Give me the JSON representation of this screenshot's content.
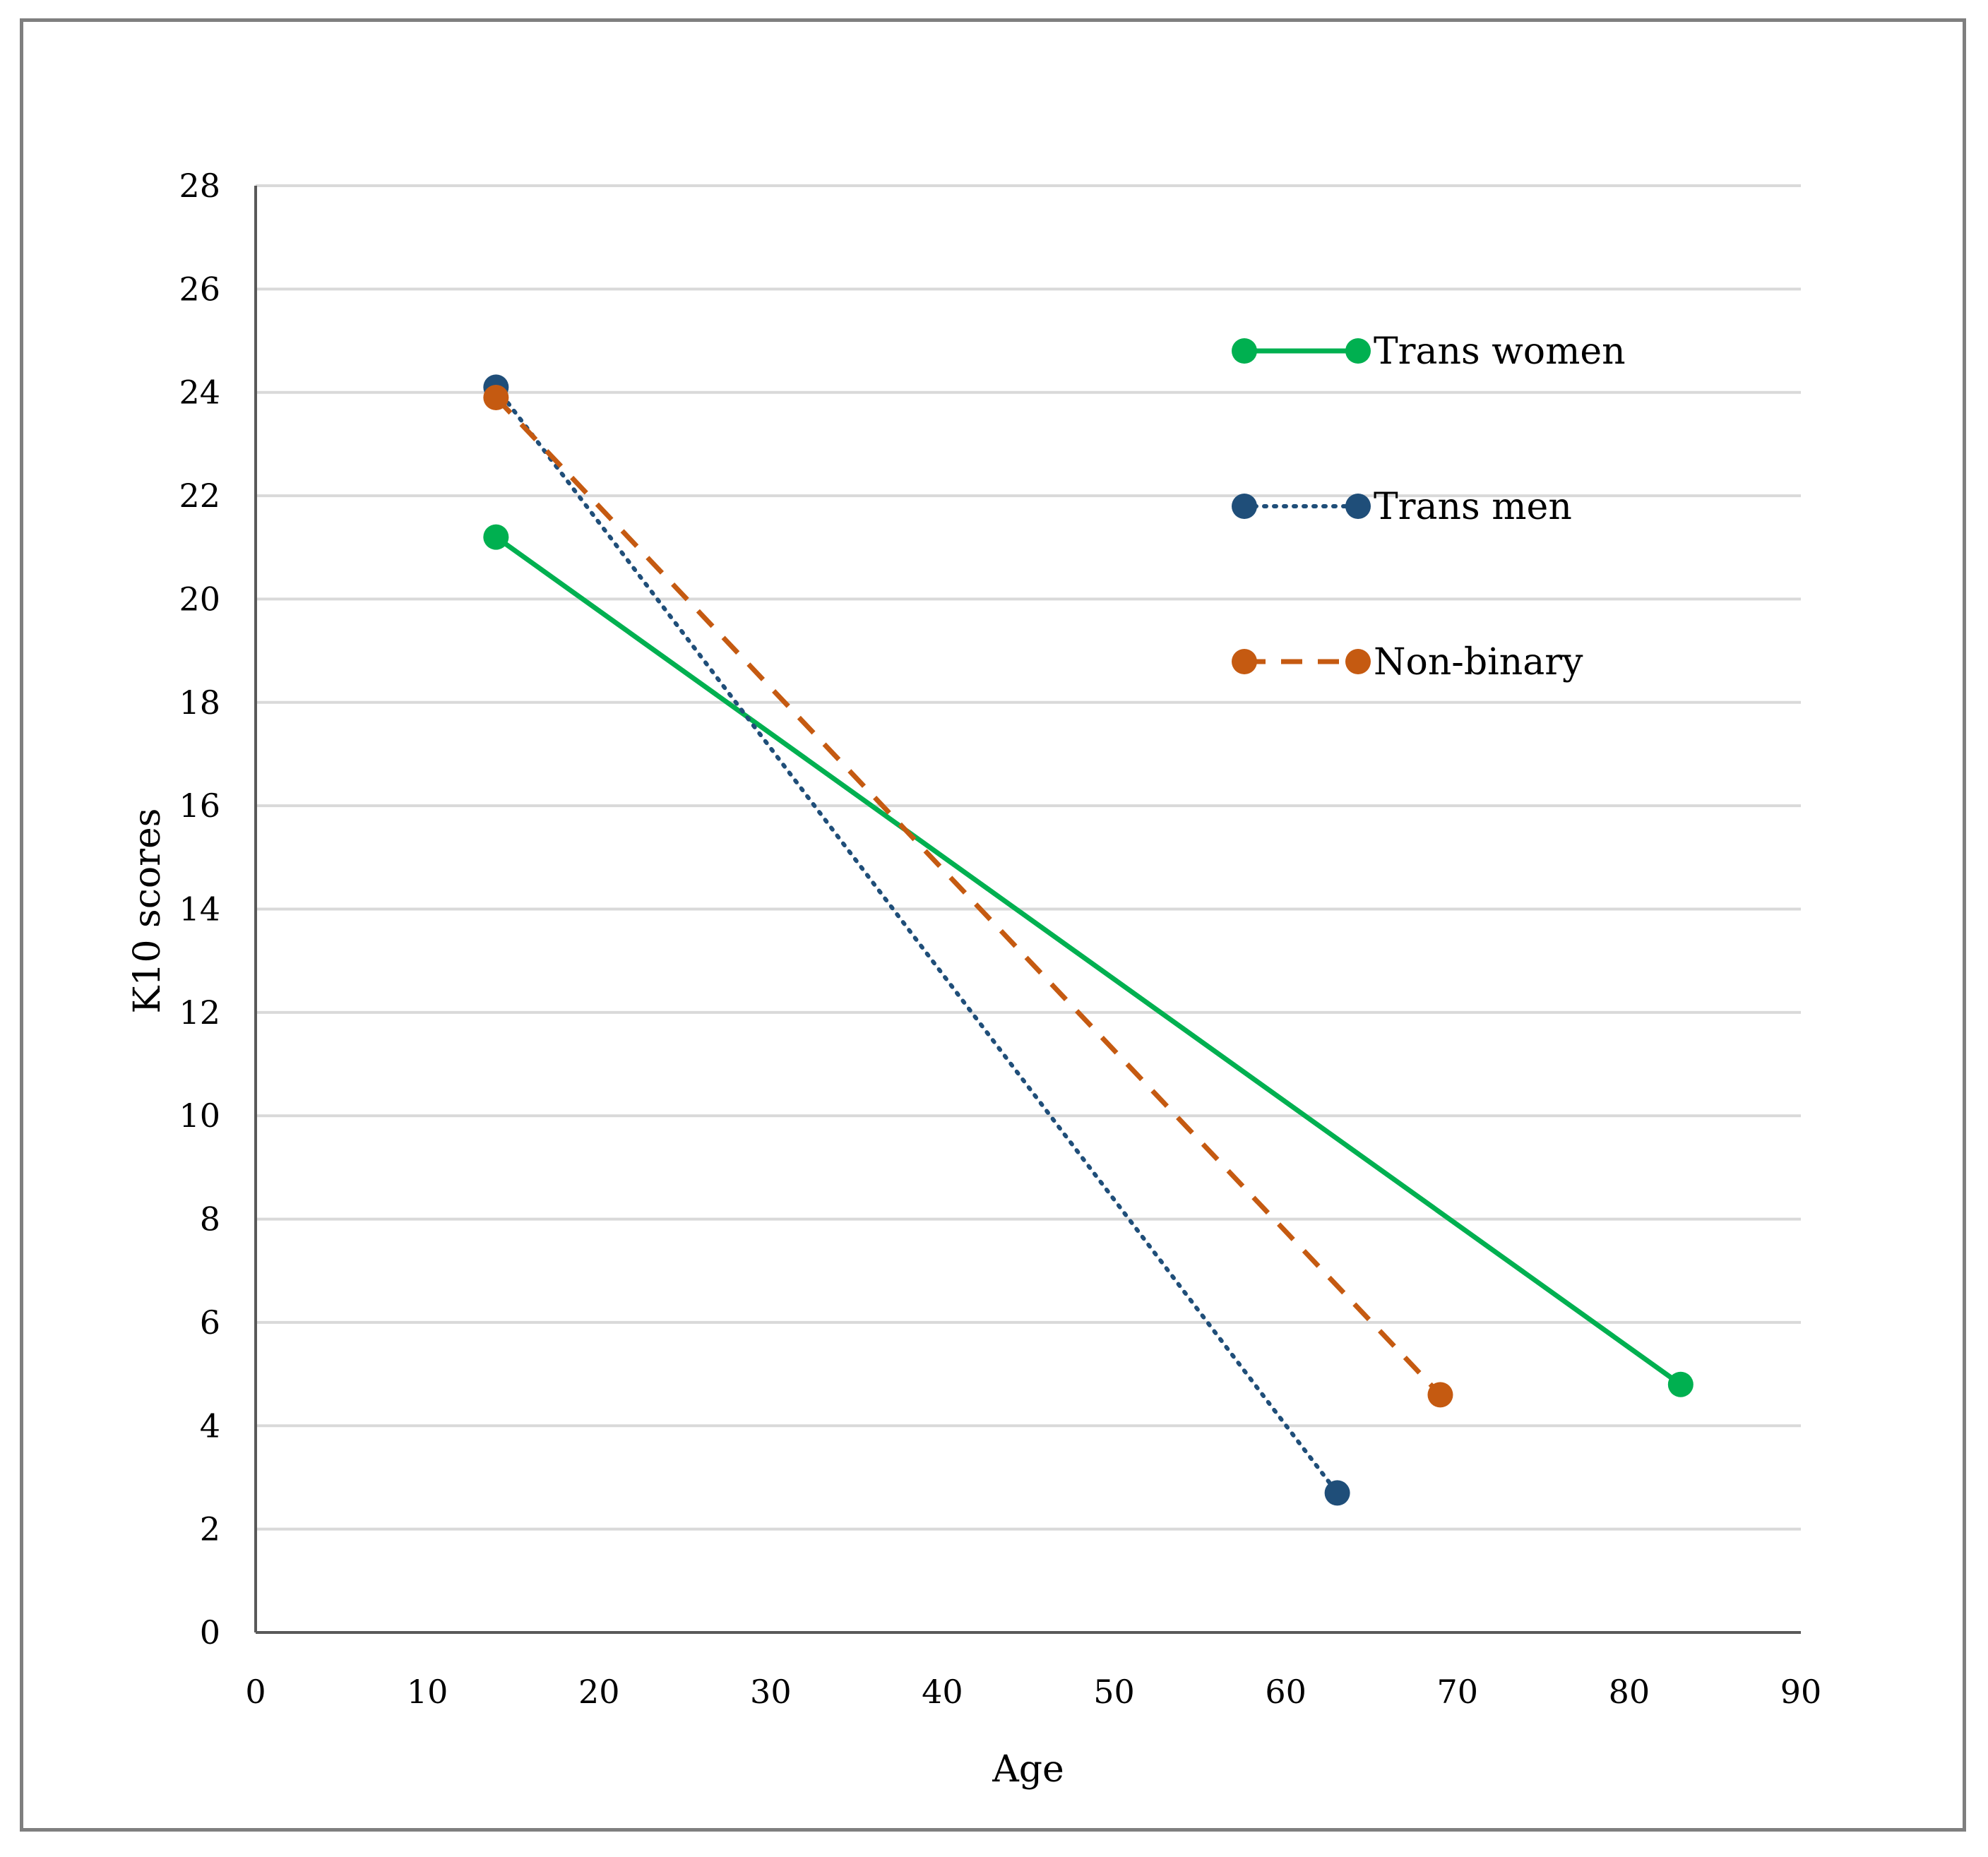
{
  "chart_data": {
    "type": "line",
    "title": "",
    "xlabel": "Age",
    "ylabel": "K10 scores",
    "xlim": [
      0,
      90
    ],
    "ylim": [
      0,
      28
    ],
    "xticks": [
      0,
      10,
      20,
      30,
      40,
      50,
      60,
      70,
      80,
      90
    ],
    "yticks": [
      0,
      2,
      4,
      6,
      8,
      10,
      12,
      14,
      16,
      18,
      20,
      22,
      24,
      26,
      28
    ],
    "grid": "horizontal",
    "legend_position": "top-right",
    "series": [
      {
        "name": "Trans women",
        "color": "#00b050",
        "line_style": "solid",
        "points": [
          {
            "x": 14,
            "y": 21.2
          },
          {
            "x": 83,
            "y": 4.8
          }
        ]
      },
      {
        "name": "Trans men",
        "color": "#1f4e79",
        "line_style": "dotted",
        "points": [
          {
            "x": 14,
            "y": 24.1
          },
          {
            "x": 63,
            "y": 2.7
          }
        ]
      },
      {
        "name": "Non-binary",
        "color": "#c55a11",
        "line_style": "dashed",
        "points": [
          {
            "x": 14,
            "y": 23.9
          },
          {
            "x": 69,
            "y": 4.6
          }
        ]
      }
    ]
  }
}
